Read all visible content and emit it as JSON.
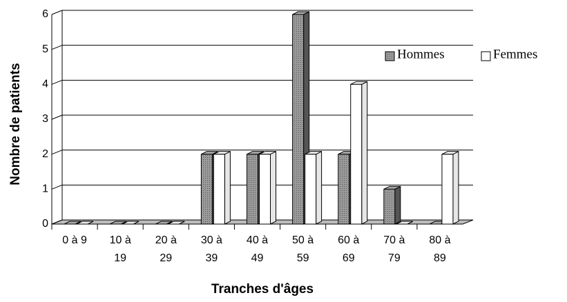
{
  "chart_data": {
    "type": "bar3d",
    "x_label": "Tranches d'âges",
    "y_label": "Nombre de patients",
    "categories": [
      "0 à 9",
      "10 à 19",
      "20 à 29",
      "30 à 39",
      "40 à 49",
      "50 à 59",
      "60 à 69",
      "70 à 79",
      "80 à 89"
    ],
    "series": [
      {
        "name": "Hommes",
        "color": "#8c8c8c",
        "values": [
          0,
          0,
          0,
          2,
          2,
          6,
          2,
          1,
          0
        ]
      },
      {
        "name": "Femmes",
        "color": "#ffffff",
        "values": [
          0,
          0,
          0,
          2,
          2,
          2,
          4,
          0,
          2
        ]
      }
    ],
    "ylim": [
      0,
      6
    ],
    "yticks": [
      0,
      1,
      2,
      3,
      4,
      5,
      6
    ],
    "grid": true
  }
}
